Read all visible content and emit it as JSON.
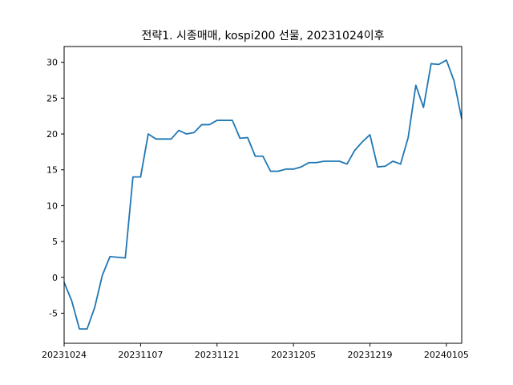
{
  "chart_data": {
    "type": "line",
    "title": "전략1. 시종매매, kospi200 선물, 20231024이후",
    "xlabel": "",
    "ylabel": "",
    "x_tick_labels": [
      "20231024",
      "20231107",
      "20231121",
      "20231205",
      "20231219",
      "20240105"
    ],
    "y_ticks": [
      -5,
      0,
      5,
      10,
      15,
      20,
      25,
      30
    ],
    "ylim": [
      -9.2,
      32.2
    ],
    "grid": false,
    "line_color": "#1f77b4",
    "series": [
      {
        "name": "",
        "values": [
          -0.7,
          -3.3,
          -7.2,
          -7.2,
          -4.2,
          0.3,
          2.9,
          2.8,
          2.7,
          14.0,
          14.0,
          20.0,
          19.3,
          19.3,
          19.3,
          20.5,
          20.0,
          20.2,
          21.3,
          21.3,
          21.9,
          21.9,
          21.9,
          19.4,
          19.5,
          16.9,
          16.9,
          14.8,
          14.8,
          15.1,
          15.1,
          15.4,
          16.0,
          16.0,
          16.2,
          16.2,
          16.2,
          15.8,
          17.7,
          18.9,
          19.9,
          15.4,
          15.5,
          16.2,
          15.8,
          19.5,
          26.8,
          23.7,
          29.8,
          29.7,
          30.3,
          27.4,
          22.1
        ]
      }
    ],
    "x_tick_indices": [
      0,
      10,
      20,
      30,
      40,
      50
    ]
  }
}
